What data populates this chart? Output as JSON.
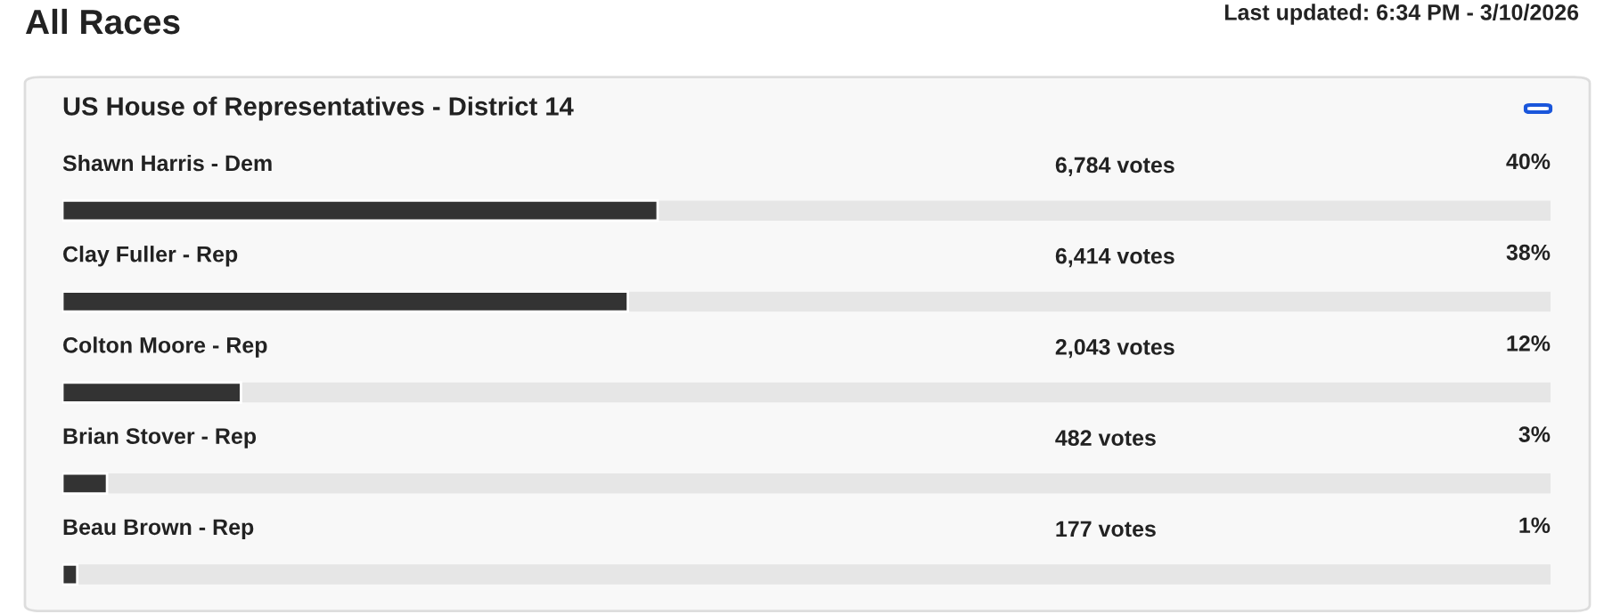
{
  "chart_data": {
    "type": "bar",
    "orientation": "horizontal",
    "title": "All Races",
    "subtitle": "US House of Representatives - District 14",
    "categories": [
      "Shawn Harris - Dem",
      "Clay Fuller - Rep",
      "Colton Moore - Rep",
      "Brian Stover - Rep",
      "Beau Brown - Rep"
    ],
    "values": [
      40,
      38,
      12,
      3,
      1
    ],
    "value_labels": [
      "40%",
      "38%",
      "12%",
      "3%",
      "1%"
    ],
    "color": "#333333",
    "xlim": [
      0,
      100
    ],
    "annotations": [
      "Last updated: 6:34 PM - 3/10/2026",
      "6,784 votes",
      "6,414 votes",
      "2,043 votes",
      "482 votes",
      "177 votes"
    ]
  }
}
